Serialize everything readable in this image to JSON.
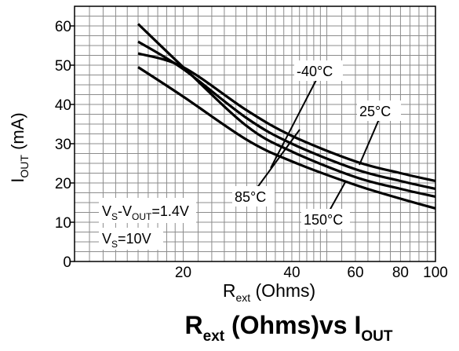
{
  "chart_data": {
    "type": "line",
    "title": "R",
    "title_sub": "ext",
    "title_mid": " (Ohms)vs I",
    "title_sub2": "OUT",
    "xlabel": "R",
    "xlabel_sub": "ext",
    "xlabel_tail": " (Ohms)",
    "ylabel": "I",
    "ylabel_sub": "OUT",
    "ylabel_tail": "  (mA)",
    "x_scale": "log",
    "xlim": [
      10,
      100
    ],
    "ylim": [
      0,
      65
    ],
    "grid": true,
    "x_ticks": [
      {
        "value": 20,
        "label": "20"
      },
      {
        "value": 40,
        "label": "40"
      },
      {
        "value": 60,
        "label": "60"
      },
      {
        "value": 80,
        "label": "80"
      },
      {
        "value": 100,
        "label": "100"
      }
    ],
    "y_ticks": [
      {
        "value": 0,
        "label": "0"
      },
      {
        "value": 10,
        "label": "10"
      },
      {
        "value": 20,
        "label": "20"
      },
      {
        "value": 30,
        "label": "30"
      },
      {
        "value": 40,
        "label": "40"
      },
      {
        "value": 50,
        "label": "50"
      },
      {
        "value": 60,
        "label": "60"
      }
    ],
    "series": [
      {
        "name": "-40°C",
        "x": [
          15,
          20,
          30,
          40,
          60,
          80,
          100
        ],
        "y": [
          53,
          49.5,
          38.5,
          32,
          25.5,
          22.5,
          20.5
        ]
      },
      {
        "name": "25°C",
        "x": [
          15,
          20,
          30,
          40,
          60,
          80,
          100
        ],
        "y": [
          56,
          49,
          36.5,
          30,
          23.5,
          20.5,
          18.5
        ]
      },
      {
        "name": "85°C",
        "x": [
          15,
          20,
          30,
          40,
          60,
          80,
          100
        ],
        "y": [
          60.5,
          49.5,
          34.5,
          28,
          21.5,
          18.5,
          16.5
        ]
      },
      {
        "name": "150°C",
        "x": [
          15,
          20,
          30,
          40,
          60,
          80,
          100
        ],
        "y": [
          49.5,
          42,
          31,
          25.5,
          19.5,
          16,
          13.5
        ]
      }
    ],
    "annotations": {
      "cond1_main": "V",
      "cond1_sub1": "S",
      "cond1_mid": "-V",
      "cond1_sub2": "OUT",
      "cond1_tail": "=1.4V",
      "cond2_main": "V",
      "cond2_sub": "S",
      "cond2_tail": "=10V"
    }
  },
  "colors": {
    "line": "#000000",
    "grid": "#8c8c8c",
    "background": "#ffffff"
  }
}
